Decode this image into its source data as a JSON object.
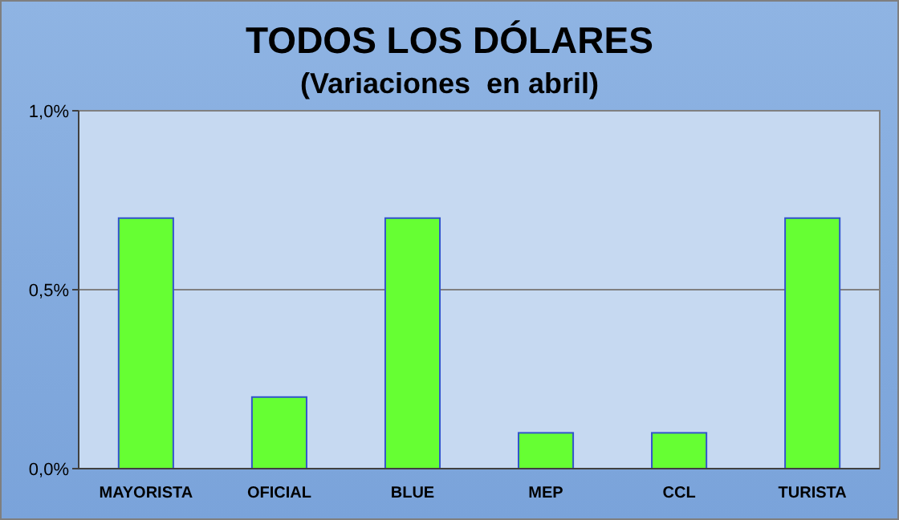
{
  "chart_data": {
    "type": "bar",
    "title": "TODOS LOS DÓLARES",
    "subtitle": "(Variaciones  en abril)",
    "categories": [
      "MAYORISTA",
      "OFICIAL",
      "BLUE",
      "MEP",
      "CCL",
      "TURISTA"
    ],
    "values": [
      0.7,
      0.2,
      0.7,
      0.1,
      0.1,
      0.7
    ],
    "color": "#66ff33",
    "ylim": [
      0,
      1
    ],
    "yticks": [
      {
        "value": 0,
        "label": "0,0%"
      },
      {
        "value": 0.5,
        "label": "0,5%"
      },
      {
        "value": 1,
        "label": "1,0%"
      }
    ],
    "grid": "y"
  }
}
